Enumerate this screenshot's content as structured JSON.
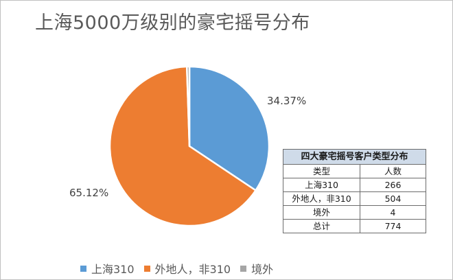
{
  "title": "上海5000万级别的豪宅摇号分布",
  "colors": {
    "shanghai": "#5b9bd5",
    "waidi": "#ed7d31",
    "jingwai": "#a5a5a5"
  },
  "chart_data": {
    "type": "pie",
    "title": "上海5000万级别的豪宅摇号分布",
    "categories": [
      "上海310",
      "外地人，非310",
      "境外"
    ],
    "values": [
      34.37,
      65.12,
      0.52
    ],
    "data_labels": [
      "34.37%",
      "65.12%",
      ""
    ],
    "legend_placement": "bottom"
  },
  "table": {
    "caption": "四大豪宅摇号客户类型分布",
    "headers": [
      "类型",
      "人数"
    ],
    "rows": [
      [
        "上海310",
        "266"
      ],
      [
        "外地人，非310",
        "504"
      ],
      [
        "境外",
        "4"
      ],
      [
        "总计",
        "774"
      ]
    ]
  }
}
